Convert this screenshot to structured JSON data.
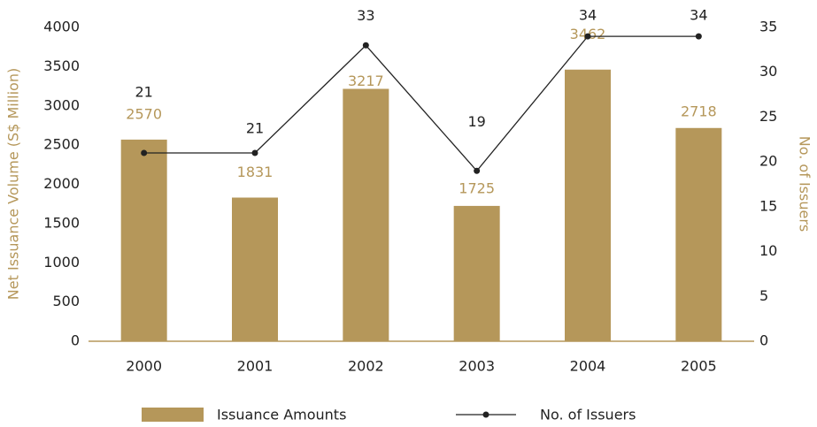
{
  "chart_data": {
    "type": "bar",
    "categories": [
      "2000",
      "2001",
      "2002",
      "2003",
      "2004",
      "2005"
    ],
    "series": [
      {
        "name": "Issuance Amounts",
        "color": "#b5975a",
        "values": [
          2570,
          1831,
          3217,
          1725,
          3462,
          2718
        ]
      },
      {
        "name": "No. of Issuers",
        "color": "#222222",
        "type": "line",
        "axis": "y2",
        "values": [
          21,
          21,
          33,
          19,
          34,
          34
        ]
      }
    ],
    "y_label": "Net Issuance Volume (S$ Million)",
    "y2_label": "No. of Issuers",
    "ylim": [
      0,
      4000
    ],
    "yticks": [
      0,
      500,
      1000,
      1500,
      2000,
      2500,
      3000,
      3500,
      4000
    ],
    "y2lim": [
      0,
      35
    ],
    "y2ticks": [
      0,
      5,
      10,
      15,
      20,
      25,
      30,
      35
    ],
    "legend": "bottom"
  }
}
